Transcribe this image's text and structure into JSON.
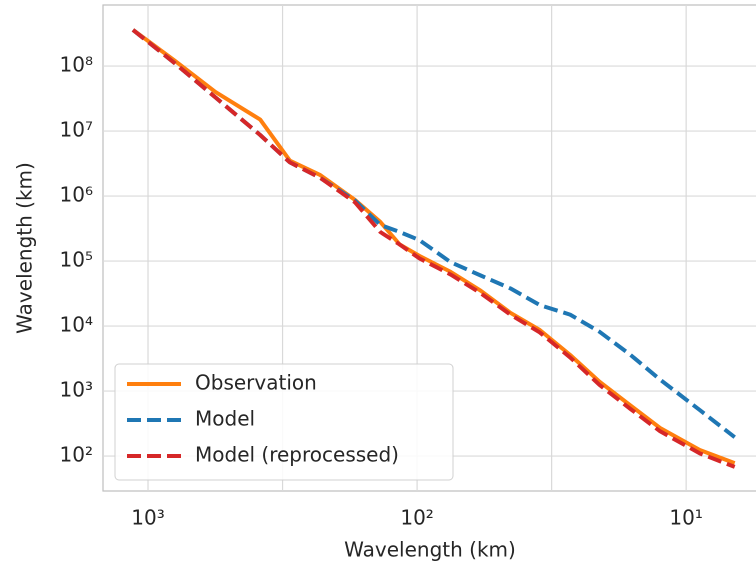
{
  "chart_data": {
    "type": "line",
    "xlabel": "Wavelength (km)",
    "ylabel": "Wavelength (km)",
    "x": [
      1137,
      794,
      562,
      383,
      297,
      229,
      170,
      137,
      116,
      98,
      75,
      58,
      45,
      35,
      27,
      21,
      16.1,
      12.5,
      8.9,
      6.6
    ],
    "series": [
      {
        "name": "Observation",
        "color": "#ff7f0e",
        "dash": "solid",
        "values": [
          360000000,
          120000000,
          40000000,
          15000000,
          3500000,
          2100000,
          870000,
          400000,
          180000,
          120000,
          68000,
          35000,
          16000,
          8700,
          3600,
          1400,
          600,
          270,
          124,
          78
        ]
      },
      {
        "name": "Model",
        "color": "#1f77b4",
        "dash": "dashed",
        "values": [
          360000000,
          110000000,
          33000000,
          8700000,
          3300000,
          1900000,
          850000,
          360000,
          280000,
          210000,
          96000,
          60000,
          38000,
          21000,
          15000,
          8200,
          3600,
          1500,
          510,
          195
        ]
      },
      {
        "name": "Model (reprocessed)",
        "color": "#d62728",
        "dash": "dashed",
        "values": [
          360000000,
          110000000,
          33000000,
          8700000,
          3300000,
          1900000,
          800000,
          280000,
          180000,
          110000,
          62000,
          32000,
          15000,
          8000,
          3300,
          1250,
          530,
          240,
          110,
          68
        ]
      }
    ],
    "xscale": "log",
    "yscale": "log",
    "xlim": [
      1470,
      5.5
    ],
    "ylim": [
      29,
      870000000
    ],
    "xticks": [
      {
        "value": 1000,
        "label": "10³"
      },
      {
        "value": 100,
        "label": "10²"
      },
      {
        "value": 10,
        "label": "10¹"
      }
    ],
    "xgrid_extra": [
      316.2,
      31.62
    ],
    "yticks": [
      {
        "value": 100,
        "label": "10²"
      },
      {
        "value": 1000,
        "label": "10³"
      },
      {
        "value": 10000,
        "label": "10⁴"
      },
      {
        "value": 100000,
        "label": "10⁵"
      },
      {
        "value": 1000000,
        "label": "10⁶"
      },
      {
        "value": 10000000,
        "label": "10⁷"
      },
      {
        "value": 100000000,
        "label": "10⁸"
      }
    ],
    "grid": true,
    "legend": "lower left"
  }
}
